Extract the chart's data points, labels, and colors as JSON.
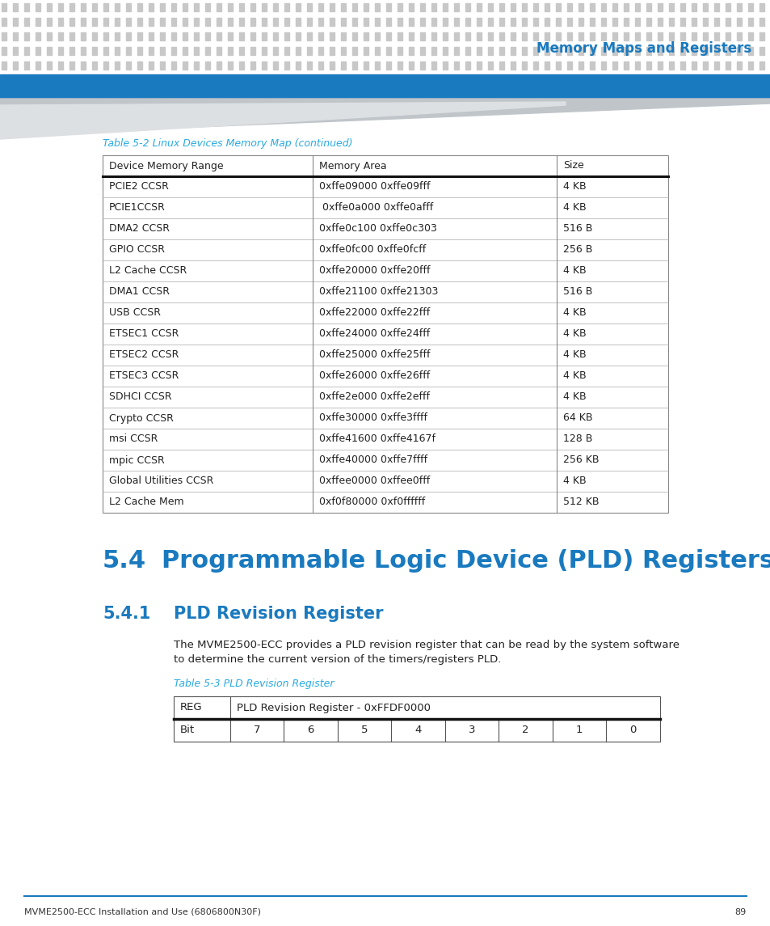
{
  "header_title": "Memory Maps and Registers",
  "header_bg_color": "#1a7abf",
  "header_title_color": "#1a7abf",
  "dot_color_dark": "#c8c8c8",
  "dot_color_light": "#e0e0e0",
  "table1_title": "Table 5-2 Linux Devices Memory Map (continued)",
  "table1_title_color": "#29abe2",
  "table1_headers": [
    "Device Memory Range",
    "Memory Area",
    "Size"
  ],
  "table1_rows": [
    [
      "PCIE2 CCSR",
      "0xffe09000 0xffe09fff",
      "4 KB"
    ],
    [
      "PCIE1CCSR",
      " 0xffe0a000 0xffe0afff",
      "4 KB"
    ],
    [
      "DMA2 CCSR",
      "0xffe0c100 0xffe0c303",
      "516 B"
    ],
    [
      "GPIO CCSR",
      "0xffe0fc00 0xffe0fcff",
      "256 B"
    ],
    [
      "L2 Cache CCSR",
      "0xffe20000 0xffe20fff",
      "4 KB"
    ],
    [
      "DMA1 CCSR",
      "0xffe21100 0xffe21303",
      "516 B"
    ],
    [
      "USB CCSR",
      "0xffe22000 0xffe22fff",
      "4 KB"
    ],
    [
      "ETSEC1 CCSR",
      "0xffe24000 0xffe24fff",
      "4 KB"
    ],
    [
      "ETSEC2 CCSR",
      "0xffe25000 0xffe25fff",
      "4 KB"
    ],
    [
      "ETSEC3 CCSR",
      "0xffe26000 0xffe26fff",
      "4 KB"
    ],
    [
      "SDHCI CCSR",
      "0xffe2e000 0xffe2efff",
      "4 KB"
    ],
    [
      "Crypto CCSR",
      "0xffe30000 0xffe3ffff",
      "64 KB"
    ],
    [
      "msi CCSR",
      "0xffe41600 0xffe4167f",
      "128 B"
    ],
    [
      "mpic CCSR",
      "0xffe40000 0xffe7ffff",
      "256 KB"
    ],
    [
      "Global Utilities CCSR",
      "0xffee0000 0xffee0fff",
      "4 KB"
    ],
    [
      "L2 Cache Mem",
      "0xf0f80000 0xf0ffffff",
      "512 KB"
    ]
  ],
  "section_number": "5.4",
  "section_title": "Programmable Logic Device (PLD) Registers",
  "section_title_color": "#1a7abf",
  "subsection_number": "5.4.1",
  "subsection_title": "PLD Revision Register",
  "subsection_title_color": "#1a7abf",
  "body_text_line1": "The MVME2500-ECC provides a PLD revision register that can be read by the system software",
  "body_text_line2": "to determine the current version of the timers/registers PLD.",
  "table2_title": "Table 5-3 PLD Revision Register",
  "table2_title_color": "#29abe2",
  "table2_row1": [
    "REG",
    "PLD Revision Register - 0xFFDF0000"
  ],
  "table2_row2": [
    "Bit",
    "7",
    "6",
    "5",
    "4",
    "3",
    "2",
    "1",
    "0"
  ],
  "footer_text": "MVME2500-ECC Installation and Use (6806800N30F)",
  "footer_page": "89",
  "footer_line_color": "#1a7abf",
  "bg_color": "#ffffff"
}
